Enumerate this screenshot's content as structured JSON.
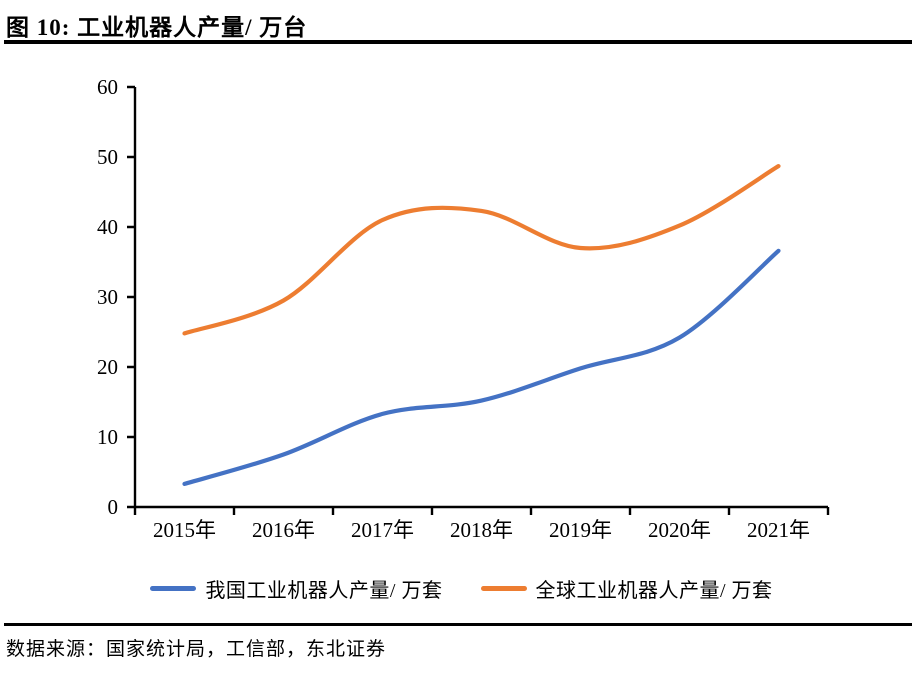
{
  "figure": {
    "title": "图 10:  工业机器人产量/ 万台",
    "source_note": "数据来源：国家统计局，工信部，东北证券"
  },
  "chart_data": {
    "type": "line",
    "title": "工业机器人产量/ 万台",
    "categories": [
      "2015年",
      "2016年",
      "2017年",
      "2018年",
      "2019年",
      "2020年",
      "2021年"
    ],
    "series": [
      {
        "name": "我国工业机器人产量/ 万套",
        "color": "#4472C4",
        "values": [
          3.3,
          7.5,
          13.3,
          15.2,
          19.8,
          24.2,
          36.6
        ]
      },
      {
        "name": "全球工业机器人产量/ 万套",
        "color": "#ED7D31",
        "values": [
          24.8,
          29.5,
          41.0,
          42.3,
          37.0,
          40.2,
          48.7
        ]
      }
    ],
    "xlabel": "",
    "ylabel": "",
    "ylim": [
      0,
      60
    ],
    "y_ticks": [
      0,
      10,
      20,
      30,
      40,
      50,
      60
    ],
    "y_tick_labels": [
      "0",
      "10",
      "20",
      "30",
      "40",
      "50",
      "60"
    ],
    "grid": false,
    "smooth": true,
    "legend_position": "bottom",
    "axis_color": "#000000",
    "text_color": "#000000"
  }
}
